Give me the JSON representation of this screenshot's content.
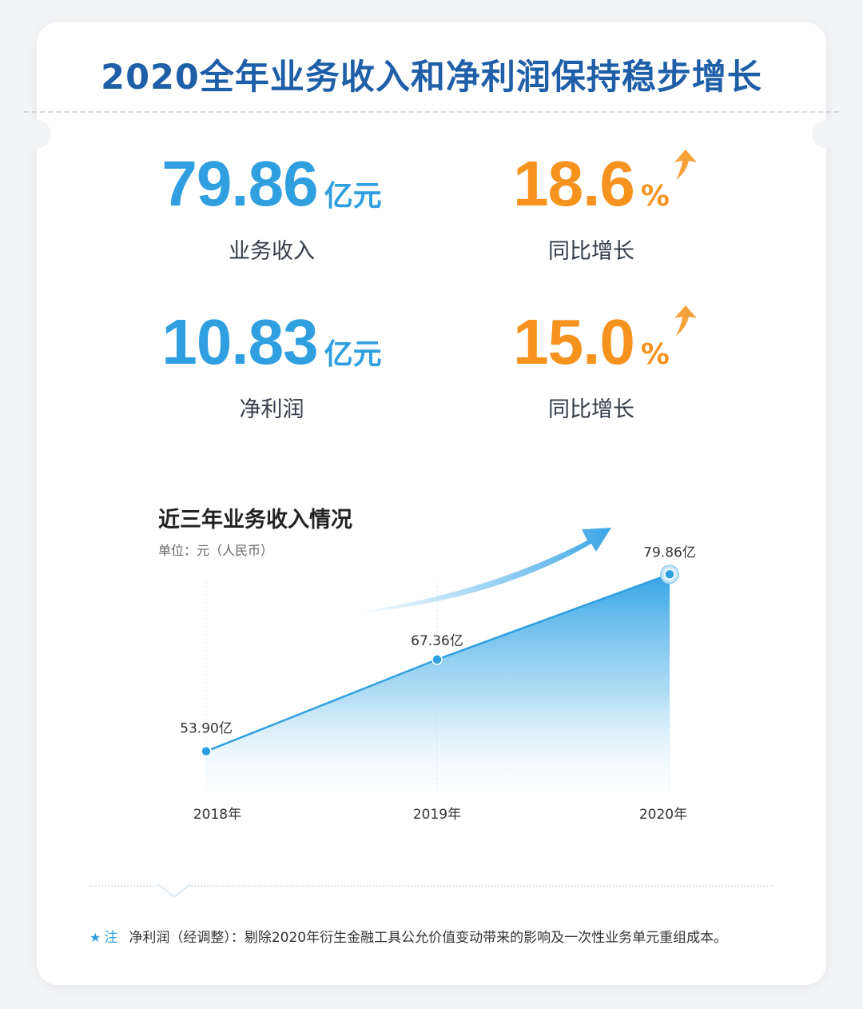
{
  "header": {
    "title": "2020全年业务收入和净利润保持稳步增长"
  },
  "stats": {
    "revenue": {
      "value": "79.86",
      "unit": "亿元",
      "label": "业务收入"
    },
    "revenue_growth": {
      "value": "18.6",
      "unit": "%",
      "label": "同比增长"
    },
    "net_profit": {
      "value": "10.83",
      "unit": "亿元",
      "label": "净利润"
    },
    "profit_growth": {
      "value": "15.0",
      "unit": "%",
      "label": "同比增长"
    }
  },
  "colors": {
    "title": "#1f5fa8",
    "blue": "#2f9fe0",
    "orange": "#f6921e"
  },
  "chart_data": {
    "type": "area",
    "title": "近三年业务收入情况",
    "subtitle": "单位：元（人民币）",
    "categories": [
      "2018年",
      "2019年",
      "2020年"
    ],
    "values": [
      53.9,
      67.36,
      79.86
    ],
    "data_labels": [
      "53.90亿",
      "67.36亿",
      "79.86亿"
    ],
    "ylim": [
      48,
      82
    ],
    "grid": "vertical"
  },
  "footnote": {
    "label": "注",
    "text": "净利润（经调整）：剔除2020年衍生金融工具公允价值变动带来的影响及一次性业务单元重组成本。"
  }
}
